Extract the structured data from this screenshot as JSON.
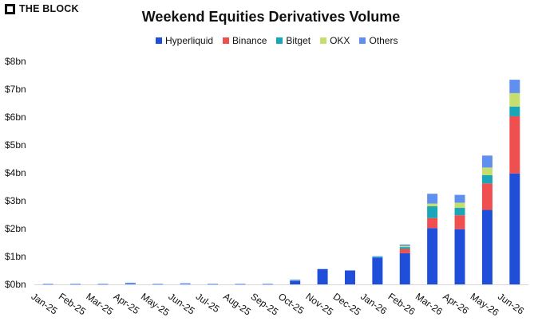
{
  "brand": {
    "name": "THE BLOCK"
  },
  "chart_data": {
    "type": "bar",
    "stacked": true,
    "title": "Weekend Equities Derivatives Volume",
    "xlabel": "",
    "ylabel": "",
    "ylim": [
      0,
      8
    ],
    "y_ticks": [
      "$0bn",
      "$1bn",
      "$2bn",
      "$3bn",
      "$4bn",
      "$5bn",
      "$6bn",
      "$7bn",
      "$8bn"
    ],
    "legend_position": "top-center",
    "grid": false,
    "categories": [
      "Jan-25",
      "Feb-25",
      "Mar-25",
      "Apr-25",
      "May-25",
      "Jun-25",
      "Jul-25",
      "Aug-25",
      "Sep-25",
      "Oct-25",
      "Nov-25",
      "Dec-25",
      "Jan-26",
      "Feb-26",
      "Mar-26",
      "Apr-26",
      "May-26",
      "Jun-26"
    ],
    "series": [
      {
        "name": "Hyperliquid",
        "color": "#1f4fd8",
        "values": [
          0,
          0,
          0,
          0,
          0,
          0,
          0,
          0,
          0,
          0.12,
          0.55,
          0.5,
          0.97,
          1.12,
          2.02,
          1.98,
          2.67,
          3.98
        ]
      },
      {
        "name": "Binance",
        "color": "#ef4f4f",
        "values": [
          0,
          0,
          0,
          0,
          0,
          0,
          0,
          0,
          0,
          0,
          0,
          0,
          0,
          0.15,
          0.36,
          0.5,
          0.95,
          2.05
        ]
      },
      {
        "name": "Bitget",
        "color": "#1aa5b8",
        "values": [
          0,
          0,
          0,
          0,
          0,
          0,
          0,
          0,
          0,
          0,
          0,
          0,
          0.01,
          0.07,
          0.42,
          0.27,
          0.3,
          0.35
        ]
      },
      {
        "name": "OKX",
        "color": "#c6de6e",
        "values": [
          0,
          0,
          0,
          0,
          0,
          0,
          0,
          0,
          0,
          0,
          0,
          0,
          0,
          0.04,
          0.1,
          0.18,
          0.27,
          0.48
        ]
      },
      {
        "name": "Others",
        "color": "#5f8fef",
        "values": [
          0.02,
          0.02,
          0.02,
          0.06,
          0.02,
          0.04,
          0.02,
          0.02,
          0.02,
          0.05,
          0,
          0,
          0.03,
          0.05,
          0.35,
          0.28,
          0.43,
          0.48
        ]
      }
    ]
  }
}
